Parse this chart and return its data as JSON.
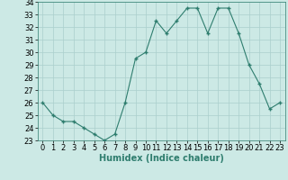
{
  "x": [
    0,
    1,
    2,
    3,
    4,
    5,
    6,
    7,
    8,
    9,
    10,
    11,
    12,
    13,
    14,
    15,
    16,
    17,
    18,
    19,
    20,
    21,
    22,
    23
  ],
  "y": [
    26.0,
    25.0,
    24.5,
    24.5,
    24.0,
    23.5,
    23.0,
    23.5,
    26.0,
    29.5,
    30.0,
    32.5,
    31.5,
    32.5,
    33.5,
    33.5,
    31.5,
    33.5,
    33.5,
    31.5,
    29.0,
    27.5,
    25.5,
    26.0
  ],
  "line_color": "#2e7d6e",
  "marker": "+",
  "marker_size": 3.5,
  "bg_color": "#cce9e5",
  "grid_color": "#aacfcc",
  "xlabel": "Humidex (Indice chaleur)",
  "xlabel_fontsize": 7,
  "ylim": [
    23,
    34
  ],
  "xlim": [
    -0.5,
    23.5
  ],
  "yticks": [
    23,
    24,
    25,
    26,
    27,
    28,
    29,
    30,
    31,
    32,
    33,
    34
  ],
  "xticks": [
    0,
    1,
    2,
    3,
    4,
    5,
    6,
    7,
    8,
    9,
    10,
    11,
    12,
    13,
    14,
    15,
    16,
    17,
    18,
    19,
    20,
    21,
    22,
    23
  ],
  "tick_fontsize": 6,
  "lw": 0.8
}
